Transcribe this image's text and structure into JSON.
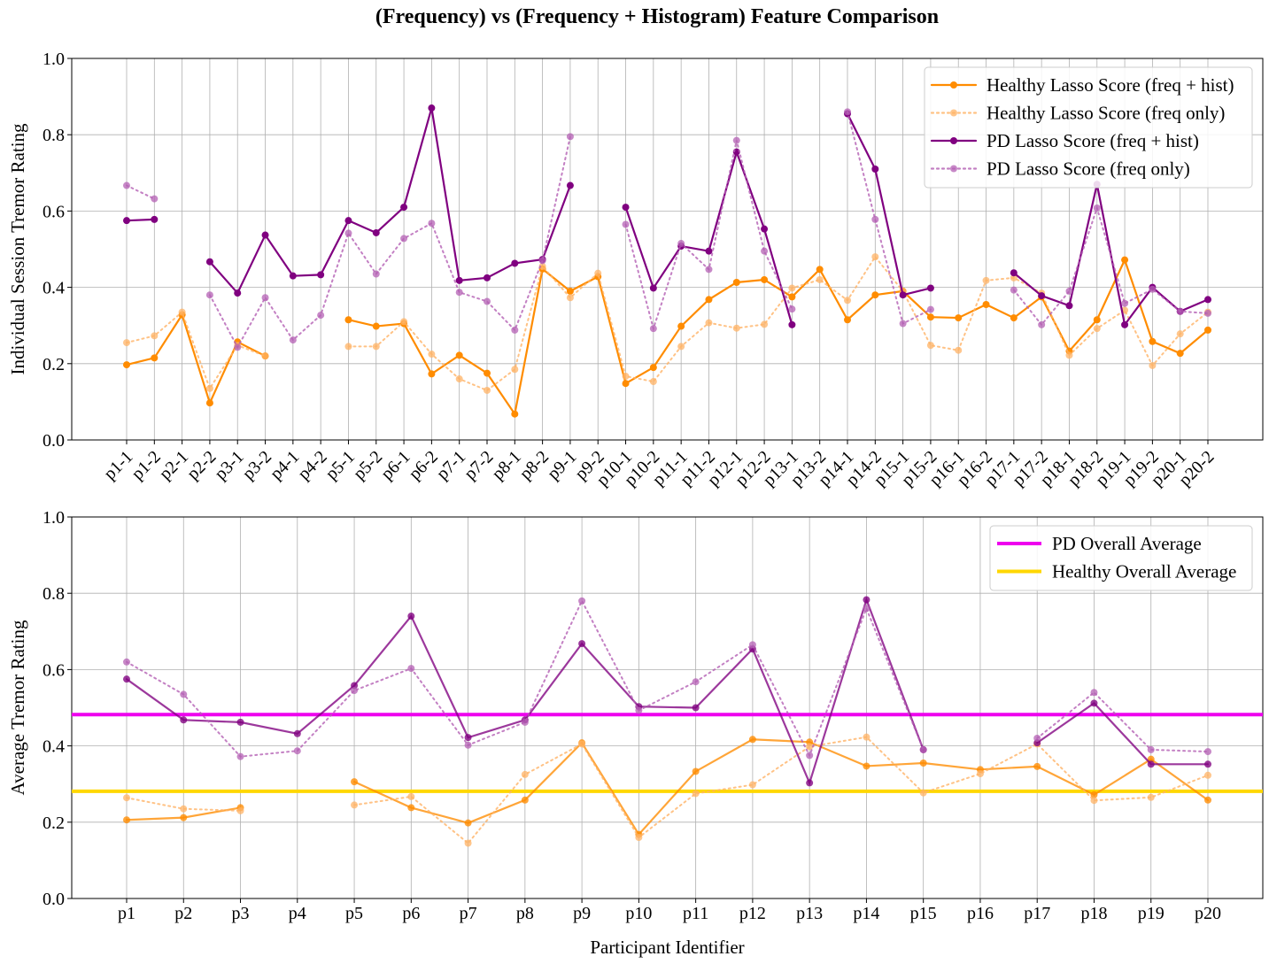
{
  "figure": {
    "title": "(Frequency) vs (Frequency + Histogram) Feature Comparison"
  },
  "chart_data": [
    {
      "type": "line",
      "ylabel": "Individual Session Tremor Rating",
      "xlabel": "",
      "ylim": [
        0,
        1
      ],
      "yticks": [
        "0.0",
        "0.2",
        "0.4",
        "0.6",
        "0.8",
        "1.0"
      ],
      "grid": true,
      "legend_position": "top-right",
      "categories": [
        "p1-1",
        "p1-2",
        "p2-1",
        "p2-2",
        "p3-1",
        "p3-2",
        "p4-1",
        "p4-2",
        "p5-1",
        "p5-2",
        "p6-1",
        "p6-2",
        "p7-1",
        "p7-2",
        "p8-1",
        "p8-2",
        "p9-1",
        "p9-2",
        "p10-1",
        "p10-2",
        "p11-1",
        "p11-2",
        "p12-1",
        "p12-2",
        "p13-1",
        "p13-2",
        "p14-1",
        "p14-2",
        "p15-1",
        "p15-2",
        "p16-1",
        "p16-2",
        "p17-1",
        "p17-2",
        "p18-1",
        "p18-2",
        "p19-1",
        "p19-2",
        "p20-1",
        "p20-2"
      ],
      "series": [
        {
          "name": "Healthy Lasso Score (freq + hist)",
          "color": "#ff8c00",
          "style": "solid",
          "values": [
            0.197,
            0.215,
            0.328,
            0.097,
            0.257,
            0.22,
            null,
            null,
            0.315,
            0.298,
            0.305,
            0.173,
            0.222,
            0.175,
            0.068,
            0.448,
            0.39,
            0.428,
            0.148,
            0.19,
            0.298,
            0.368,
            0.413,
            0.42,
            0.375,
            0.447,
            0.315,
            0.38,
            0.39,
            0.322,
            0.32,
            0.355,
            0.32,
            0.375,
            0.233,
            0.315,
            0.472,
            0.258,
            0.227,
            0.288
          ]
        },
        {
          "name": "Healthy Lasso Score (freq only)",
          "color": "#ffb366",
          "style": "dotted",
          "values": [
            0.255,
            0.273,
            0.335,
            0.135,
            0.248,
            0.22,
            null,
            null,
            0.245,
            0.245,
            0.31,
            0.225,
            0.16,
            0.13,
            0.185,
            0.455,
            0.373,
            0.437,
            0.167,
            0.153,
            0.245,
            0.307,
            0.293,
            0.303,
            0.398,
            0.42,
            0.366,
            0.48,
            0.39,
            0.248,
            0.235,
            0.418,
            0.425,
            0.385,
            0.222,
            0.292,
            0.34,
            0.195,
            0.278,
            0.335
          ]
        },
        {
          "name": "PD Lasso Score (freq + hist)",
          "color": "#800080",
          "style": "solid",
          "values": [
            0.575,
            0.578,
            null,
            0.467,
            0.385,
            0.537,
            0.43,
            0.433,
            0.575,
            0.543,
            0.61,
            0.87,
            0.418,
            0.425,
            0.463,
            0.473,
            0.667,
            null,
            0.61,
            0.398,
            0.508,
            0.495,
            0.755,
            0.553,
            0.302,
            null,
            0.855,
            0.71,
            0.38,
            0.398,
            null,
            null,
            0.438,
            0.378,
            0.352,
            0.67,
            0.302,
            0.4,
            0.337,
            0.368
          ]
        },
        {
          "name": "PD Lasso Score (freq only)",
          "color": "#b460b4",
          "style": "dotted",
          "values": [
            0.667,
            0.632,
            null,
            0.38,
            0.243,
            0.373,
            0.262,
            0.327,
            0.542,
            0.435,
            0.528,
            0.568,
            0.387,
            0.363,
            0.288,
            0.47,
            0.795,
            null,
            0.565,
            0.292,
            0.515,
            0.447,
            0.785,
            0.495,
            0.343,
            null,
            0.86,
            0.578,
            0.305,
            0.342,
            null,
            null,
            0.393,
            0.302,
            0.39,
            0.608,
            0.358,
            0.395,
            0.337,
            0.332
          ]
        }
      ]
    },
    {
      "type": "line",
      "ylabel": "Average Tremor Rating",
      "xlabel": "Participant Identifier",
      "ylim": [
        0,
        1
      ],
      "yticks": [
        "0.0",
        "0.2",
        "0.4",
        "0.6",
        "0.8",
        "1.0"
      ],
      "grid": true,
      "legend_position": "top-right",
      "categories": [
        "p1",
        "p2",
        "p3",
        "p4",
        "p5",
        "p6",
        "p7",
        "p8",
        "p9",
        "p10",
        "p11",
        "p12",
        "p13",
        "p14",
        "p15",
        "p16",
        "p17",
        "p18",
        "p19",
        "p20"
      ],
      "series": [
        {
          "name": "",
          "color": "#ff8c00",
          "style": "solid",
          "values": [
            0.206,
            0.212,
            0.238,
            null,
            0.306,
            0.238,
            0.198,
            0.258,
            0.408,
            0.168,
            0.333,
            0.417,
            0.41,
            0.347,
            0.355,
            0.338,
            0.346,
            0.272,
            0.365,
            0.258
          ]
        },
        {
          "name": "",
          "color": "#ffb366",
          "style": "dotted",
          "values": [
            0.264,
            0.235,
            0.23,
            null,
            0.245,
            0.267,
            0.145,
            0.325,
            0.405,
            0.16,
            0.275,
            0.298,
            0.398,
            0.423,
            0.277,
            0.327,
            0.405,
            0.257,
            0.265,
            0.323
          ]
        },
        {
          "name": "",
          "color": "#800080",
          "style": "solid",
          "values": [
            0.575,
            0.468,
            0.462,
            0.432,
            0.558,
            0.74,
            0.422,
            0.468,
            0.668,
            0.503,
            0.5,
            0.654,
            0.303,
            0.783,
            0.39,
            null,
            0.408,
            0.512,
            0.352,
            0.352
          ]
        },
        {
          "name": "",
          "color": "#b460b4",
          "style": "dotted",
          "values": [
            0.62,
            0.535,
            0.372,
            0.387,
            0.545,
            0.603,
            0.402,
            0.462,
            0.78,
            0.493,
            0.568,
            0.665,
            0.375,
            0.76,
            0.39,
            null,
            0.42,
            0.54,
            0.39,
            0.385
          ]
        }
      ],
      "reference_lines": [
        {
          "name": "PD Overall Average",
          "value": 0.482,
          "color": "#ee00ee"
        },
        {
          "name": "Healthy Overall Average",
          "value": 0.281,
          "color": "#ffd700"
        }
      ]
    }
  ]
}
